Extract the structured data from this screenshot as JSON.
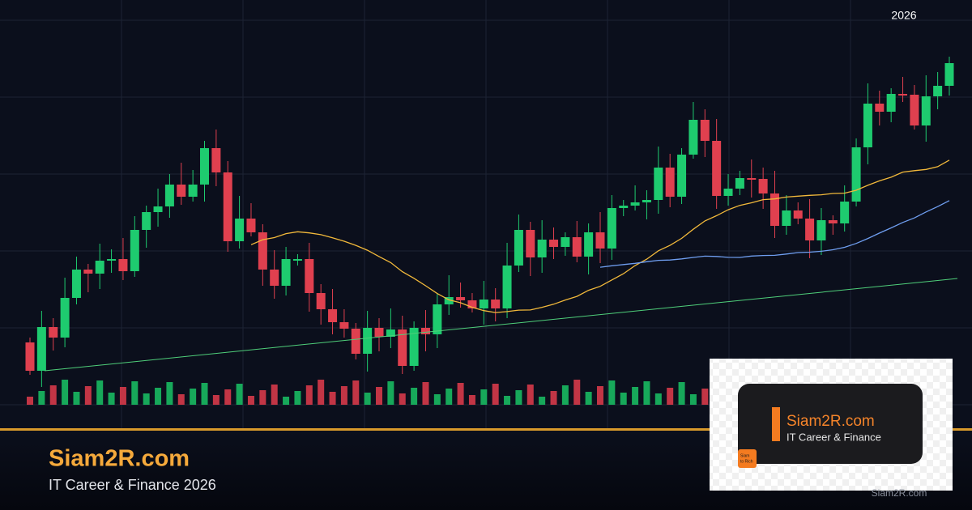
{
  "header": {
    "year": "2026"
  },
  "brand": {
    "title": "Siam2R.com",
    "subtitle": "IT Career & Finance 2026"
  },
  "logo_card": {
    "title": "Siam2R.com",
    "subtitle": "IT Career & Finance",
    "icon_text": [
      "Siam",
      "to Rich"
    ]
  },
  "watermark": "Siam2R.com"
}
